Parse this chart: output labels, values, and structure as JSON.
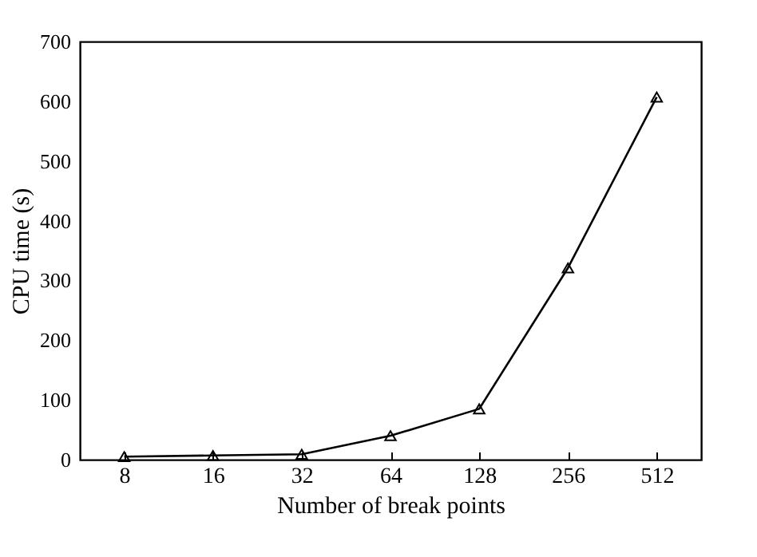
{
  "chart_data": {
    "type": "line",
    "xlabel": "Number of break points",
    "ylabel": "CPU time (s)",
    "categories": [
      "8",
      "16",
      "32",
      "64",
      "128",
      "256",
      "512"
    ],
    "series": [
      {
        "color": "#000000",
        "values": [
          5,
          7,
          9,
          40,
          85,
          321,
          607
        ]
      }
    ],
    "ylim": [
      0,
      700
    ],
    "yticks": [
      0,
      100,
      200,
      300,
      400,
      500,
      600,
      700
    ],
    "marker": "triangle",
    "line_style": "solid",
    "grid": false,
    "legend": false
  }
}
